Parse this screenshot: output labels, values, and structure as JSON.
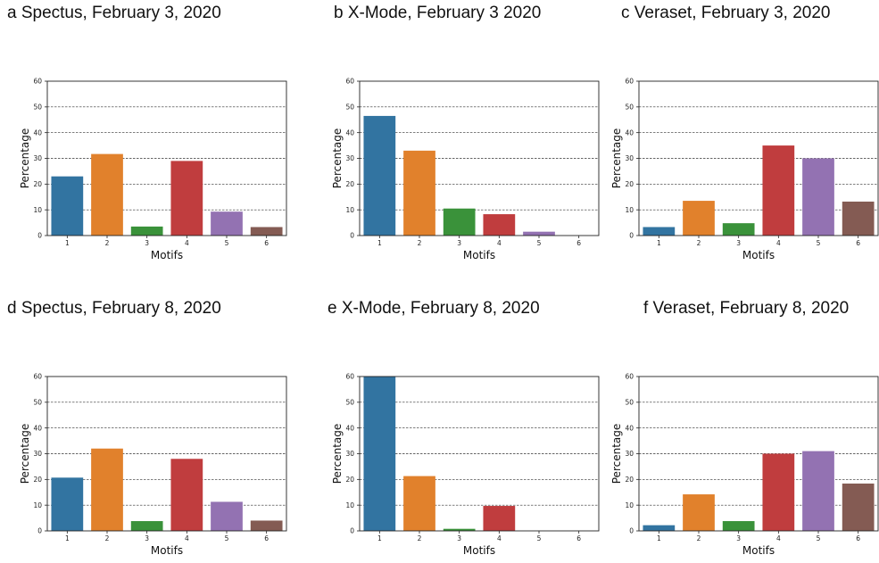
{
  "colors": [
    "#3274a1",
    "#e1812c",
    "#3a923a",
    "#c03d3e",
    "#9372b2",
    "#845b53"
  ],
  "chart_data": [
    {
      "id": "a",
      "type": "bar",
      "title": "a Spectus, February 3, 2020",
      "categories": [
        "1",
        "2",
        "3",
        "4",
        "5",
        "6"
      ],
      "values": [
        23,
        31.7,
        3.5,
        29,
        9.3,
        3.3
      ],
      "xlabel": "Motifs",
      "ylabel": "Percentage",
      "ylim": [
        0,
        60
      ],
      "yticks": [
        "0",
        "10",
        "20",
        "30",
        "40",
        "50",
        "60"
      ],
      "grid": true
    },
    {
      "id": "b",
      "type": "bar",
      "title": "b X-Mode, February 3 2020",
      "categories": [
        "1",
        "2",
        "3",
        "4",
        "5",
        "6"
      ],
      "values": [
        46.5,
        33,
        10.5,
        8.3,
        1.5,
        0
      ],
      "xlabel": "Motifs",
      "ylabel": "Percentage",
      "ylim": [
        0,
        60
      ],
      "yticks": [
        "0",
        "10",
        "20",
        "30",
        "40",
        "50",
        "60"
      ],
      "grid": true
    },
    {
      "id": "c",
      "type": "bar",
      "title": "c Veraset, February 3, 2020",
      "categories": [
        "1",
        "2",
        "3",
        "4",
        "5",
        "6"
      ],
      "values": [
        3.3,
        13.5,
        4.8,
        35,
        30,
        13.2
      ],
      "xlabel": "Motifs",
      "ylabel": "Percentage",
      "ylim": [
        0,
        60
      ],
      "yticks": [
        "0",
        "10",
        "20",
        "30",
        "40",
        "50",
        "60"
      ],
      "grid": true
    },
    {
      "id": "d",
      "type": "bar",
      "title": "d Spectus, February 8, 2020",
      "categories": [
        "1",
        "2",
        "3",
        "4",
        "5",
        "6"
      ],
      "values": [
        20.7,
        32,
        3.8,
        28,
        11.3,
        4
      ],
      "xlabel": "Motifs",
      "ylabel": "Percentage",
      "ylim": [
        0,
        60
      ],
      "yticks": [
        "0",
        "10",
        "20",
        "30",
        "40",
        "50",
        "60"
      ],
      "grid": true
    },
    {
      "id": "e",
      "type": "bar",
      "title": "e X-Mode, February 8, 2020",
      "categories": [
        "1",
        "2",
        "3",
        "4",
        "5",
        "6"
      ],
      "values": [
        60,
        21.3,
        0.8,
        9.7,
        0,
        0
      ],
      "xlabel": "Motifs",
      "ylabel": "Percentage",
      "ylim": [
        0,
        60
      ],
      "yticks": [
        "0",
        "10",
        "20",
        "30",
        "40",
        "50",
        "60"
      ],
      "grid": true
    },
    {
      "id": "f",
      "type": "bar",
      "title": "f Veraset, February 8, 2020",
      "categories": [
        "1",
        "2",
        "3",
        "4",
        "5",
        "6"
      ],
      "values": [
        2.2,
        14.2,
        3.8,
        30,
        31,
        18.4
      ],
      "xlabel": "Motifs",
      "ylabel": "Percentage",
      "ylim": [
        0,
        60
      ],
      "yticks": [
        "0",
        "10",
        "20",
        "30",
        "40",
        "50",
        "60"
      ],
      "grid": true
    }
  ]
}
